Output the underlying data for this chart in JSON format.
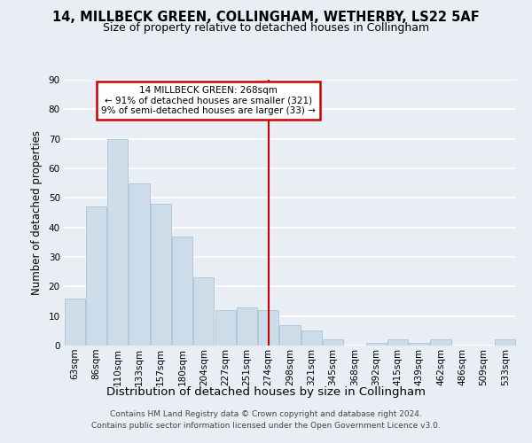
{
  "title1": "14, MILLBECK GREEN, COLLINGHAM, WETHERBY, LS22 5AF",
  "title2": "Size of property relative to detached houses in Collingham",
  "xlabel": "Distribution of detached houses by size in Collingham",
  "ylabel": "Number of detached properties",
  "categories": [
    "63sqm",
    "86sqm",
    "110sqm",
    "133sqm",
    "157sqm",
    "180sqm",
    "204sqm",
    "227sqm",
    "251sqm",
    "274sqm",
    "298sqm",
    "321sqm",
    "345sqm",
    "368sqm",
    "392sqm",
    "415sqm",
    "439sqm",
    "462sqm",
    "486sqm",
    "509sqm",
    "533sqm"
  ],
  "values": [
    16,
    47,
    70,
    55,
    48,
    37,
    23,
    12,
    13,
    12,
    7,
    5,
    2,
    0,
    1,
    2,
    1,
    2,
    0,
    0,
    2
  ],
  "bar_color": "#ccdce8",
  "bar_edge_color": "#aac4d8",
  "background_color": "#e8eef4",
  "grid_color": "#ffffff",
  "annotation_text_line1": "14 MILLBECK GREEN: 268sqm",
  "annotation_text_line2": "← 91% of detached houses are smaller (321)",
  "annotation_text_line3": "9% of semi-detached houses are larger (33) →",
  "annotation_box_facecolor": "#ffffff",
  "annotation_box_edgecolor": "#cc0000",
  "vline_color": "#cc0000",
  "vline_x": 9.0,
  "ylim": [
    0,
    90
  ],
  "yticks": [
    0,
    10,
    20,
    30,
    40,
    50,
    60,
    70,
    80,
    90
  ],
  "footer1": "Contains HM Land Registry data © Crown copyright and database right 2024.",
  "footer2": "Contains public sector information licensed under the Open Government Licence v3.0.",
  "title1_fontsize": 10.5,
  "title2_fontsize": 9.0,
  "ylabel_fontsize": 8.5,
  "xlabel_fontsize": 9.5,
  "tick_fontsize": 7.5,
  "footer_fontsize": 6.5
}
